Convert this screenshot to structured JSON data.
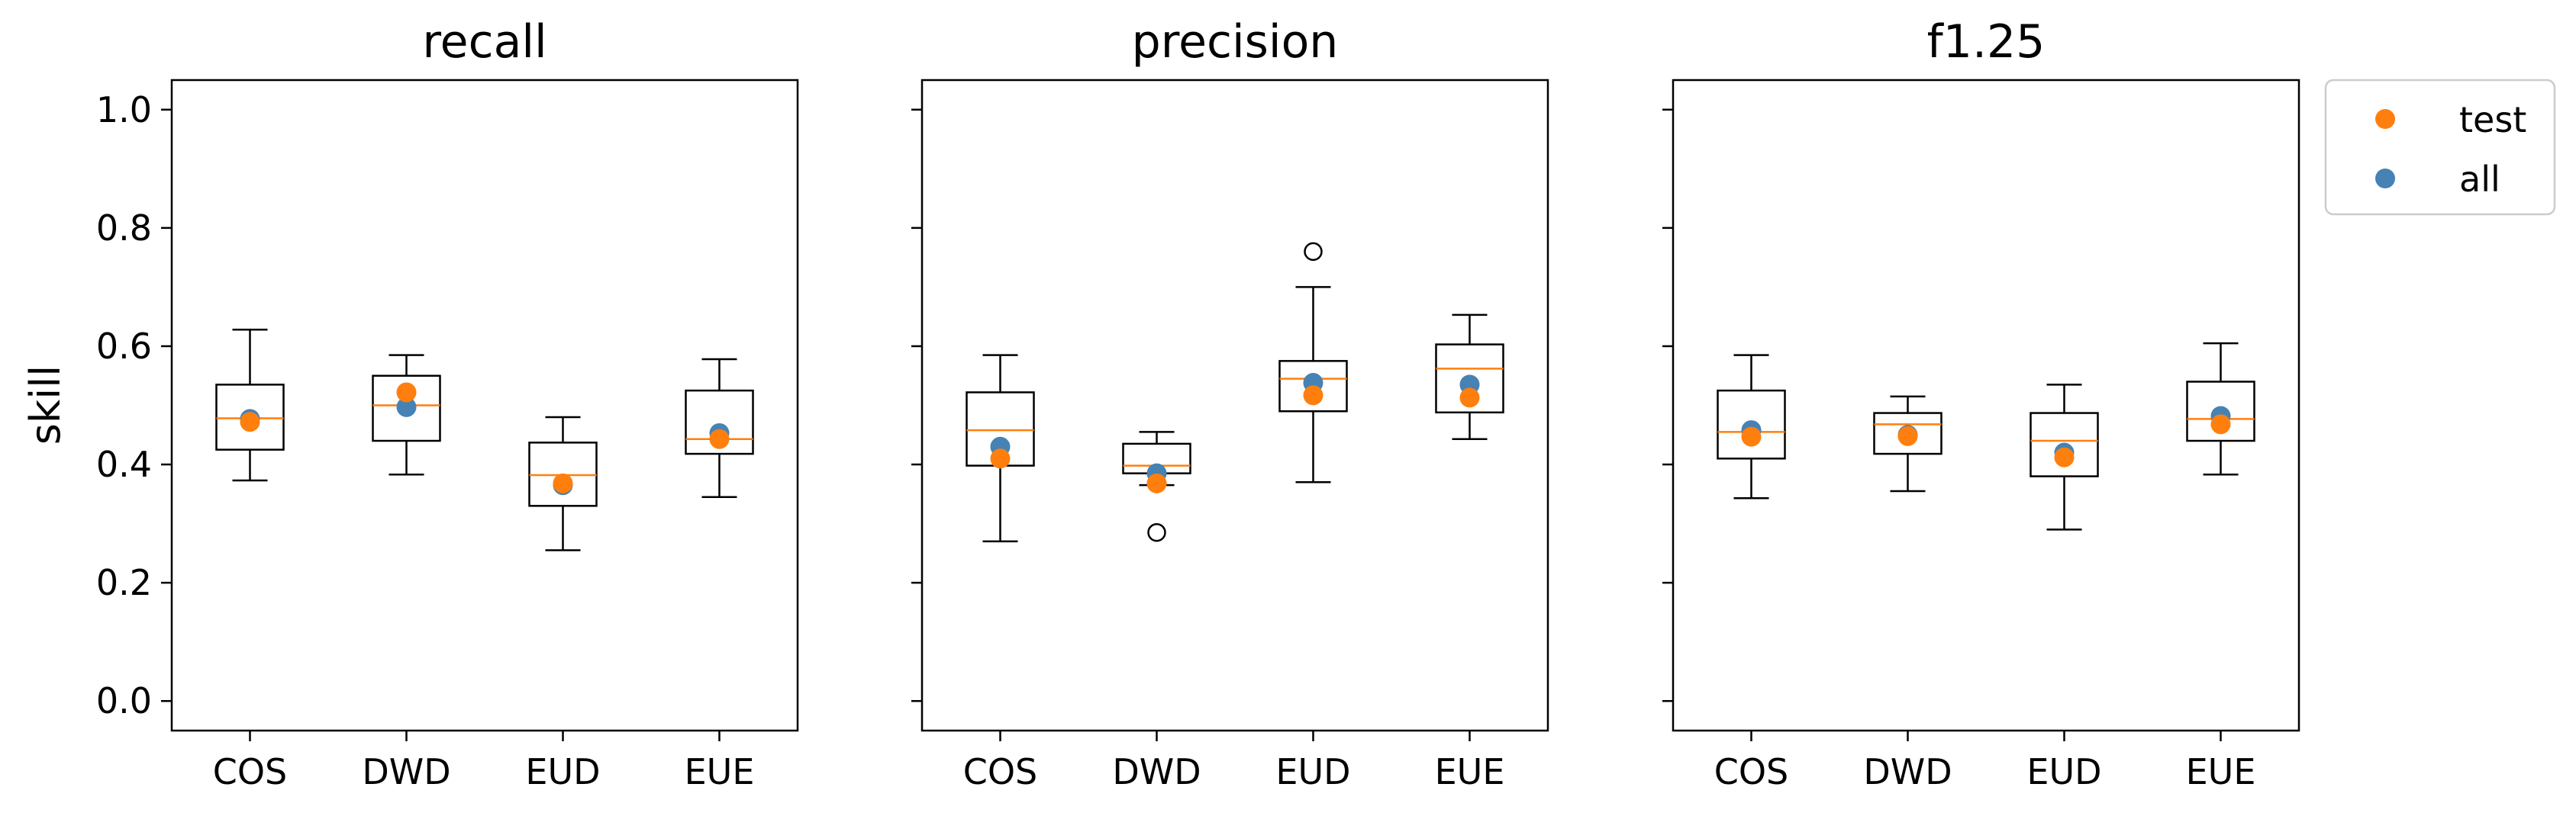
{
  "chart_data": {
    "type": "box",
    "ylabel": "skill",
    "ylim": [
      -0.05,
      1.05
    ],
    "yticks": [
      0.0,
      0.2,
      0.4,
      0.6,
      0.8,
      1.0
    ],
    "ytick_labels": [
      "0.0",
      "0.2",
      "0.4",
      "0.6",
      "0.8",
      "1.0"
    ],
    "categories": [
      "COS",
      "DWD",
      "EUD",
      "EUE"
    ],
    "legend": {
      "placement": "outside-top-right",
      "entries": [
        {
          "name": "test",
          "color": "#ff7f0e"
        },
        {
          "name": "all",
          "color": "#4682b4"
        }
      ]
    },
    "colors": {
      "median": "#ff7f0e",
      "test": "#ff7f0e",
      "all": "#4682b4",
      "box": "#000000"
    },
    "panels": [
      {
        "title": "recall",
        "boxes": [
          {
            "category": "COS",
            "whislo": 0.373,
            "q1": 0.425,
            "median": 0.478,
            "q3": 0.535,
            "whishi": 0.628,
            "fliers": [],
            "test": 0.472,
            "all": 0.477
          },
          {
            "category": "DWD",
            "whislo": 0.383,
            "q1": 0.44,
            "median": 0.5,
            "q3": 0.55,
            "whishi": 0.585,
            "fliers": [],
            "test": 0.522,
            "all": 0.497
          },
          {
            "category": "EUD",
            "whislo": 0.255,
            "q1": 0.33,
            "median": 0.382,
            "q3": 0.437,
            "whishi": 0.48,
            "fliers": [],
            "test": 0.368,
            "all": 0.365
          },
          {
            "category": "EUE",
            "whislo": 0.345,
            "q1": 0.418,
            "median": 0.443,
            "q3": 0.525,
            "whishi": 0.578,
            "fliers": [],
            "test": 0.443,
            "all": 0.453
          }
        ]
      },
      {
        "title": "precision",
        "boxes": [
          {
            "category": "COS",
            "whislo": 0.27,
            "q1": 0.398,
            "median": 0.458,
            "q3": 0.522,
            "whishi": 0.585,
            "fliers": [],
            "test": 0.41,
            "all": 0.43
          },
          {
            "category": "DWD",
            "whislo": 0.365,
            "q1": 0.385,
            "median": 0.398,
            "q3": 0.435,
            "whishi": 0.455,
            "fliers": [
              0.285
            ],
            "test": 0.368,
            "all": 0.385
          },
          {
            "category": "EUD",
            "whislo": 0.37,
            "q1": 0.49,
            "median": 0.545,
            "q3": 0.575,
            "whishi": 0.7,
            "fliers": [
              0.76
            ],
            "test": 0.517,
            "all": 0.538
          },
          {
            "category": "EUE",
            "whislo": 0.443,
            "q1": 0.488,
            "median": 0.562,
            "q3": 0.603,
            "whishi": 0.653,
            "fliers": [],
            "test": 0.513,
            "all": 0.535
          }
        ]
      },
      {
        "title": "f1.25",
        "boxes": [
          {
            "category": "COS",
            "whislo": 0.343,
            "q1": 0.41,
            "median": 0.455,
            "q3": 0.525,
            "whishi": 0.585,
            "fliers": [],
            "test": 0.447,
            "all": 0.458
          },
          {
            "category": "DWD",
            "whislo": 0.355,
            "q1": 0.418,
            "median": 0.468,
            "q3": 0.487,
            "whishi": 0.515,
            "fliers": [],
            "test": 0.448,
            "all": 0.45
          },
          {
            "category": "EUD",
            "whislo": 0.29,
            "q1": 0.38,
            "median": 0.44,
            "q3": 0.487,
            "whishi": 0.535,
            "fliers": [],
            "test": 0.412,
            "all": 0.42
          },
          {
            "category": "EUE",
            "whislo": 0.383,
            "q1": 0.44,
            "median": 0.477,
            "q3": 0.54,
            "whishi": 0.605,
            "fliers": [],
            "test": 0.468,
            "all": 0.482
          }
        ]
      }
    ]
  }
}
